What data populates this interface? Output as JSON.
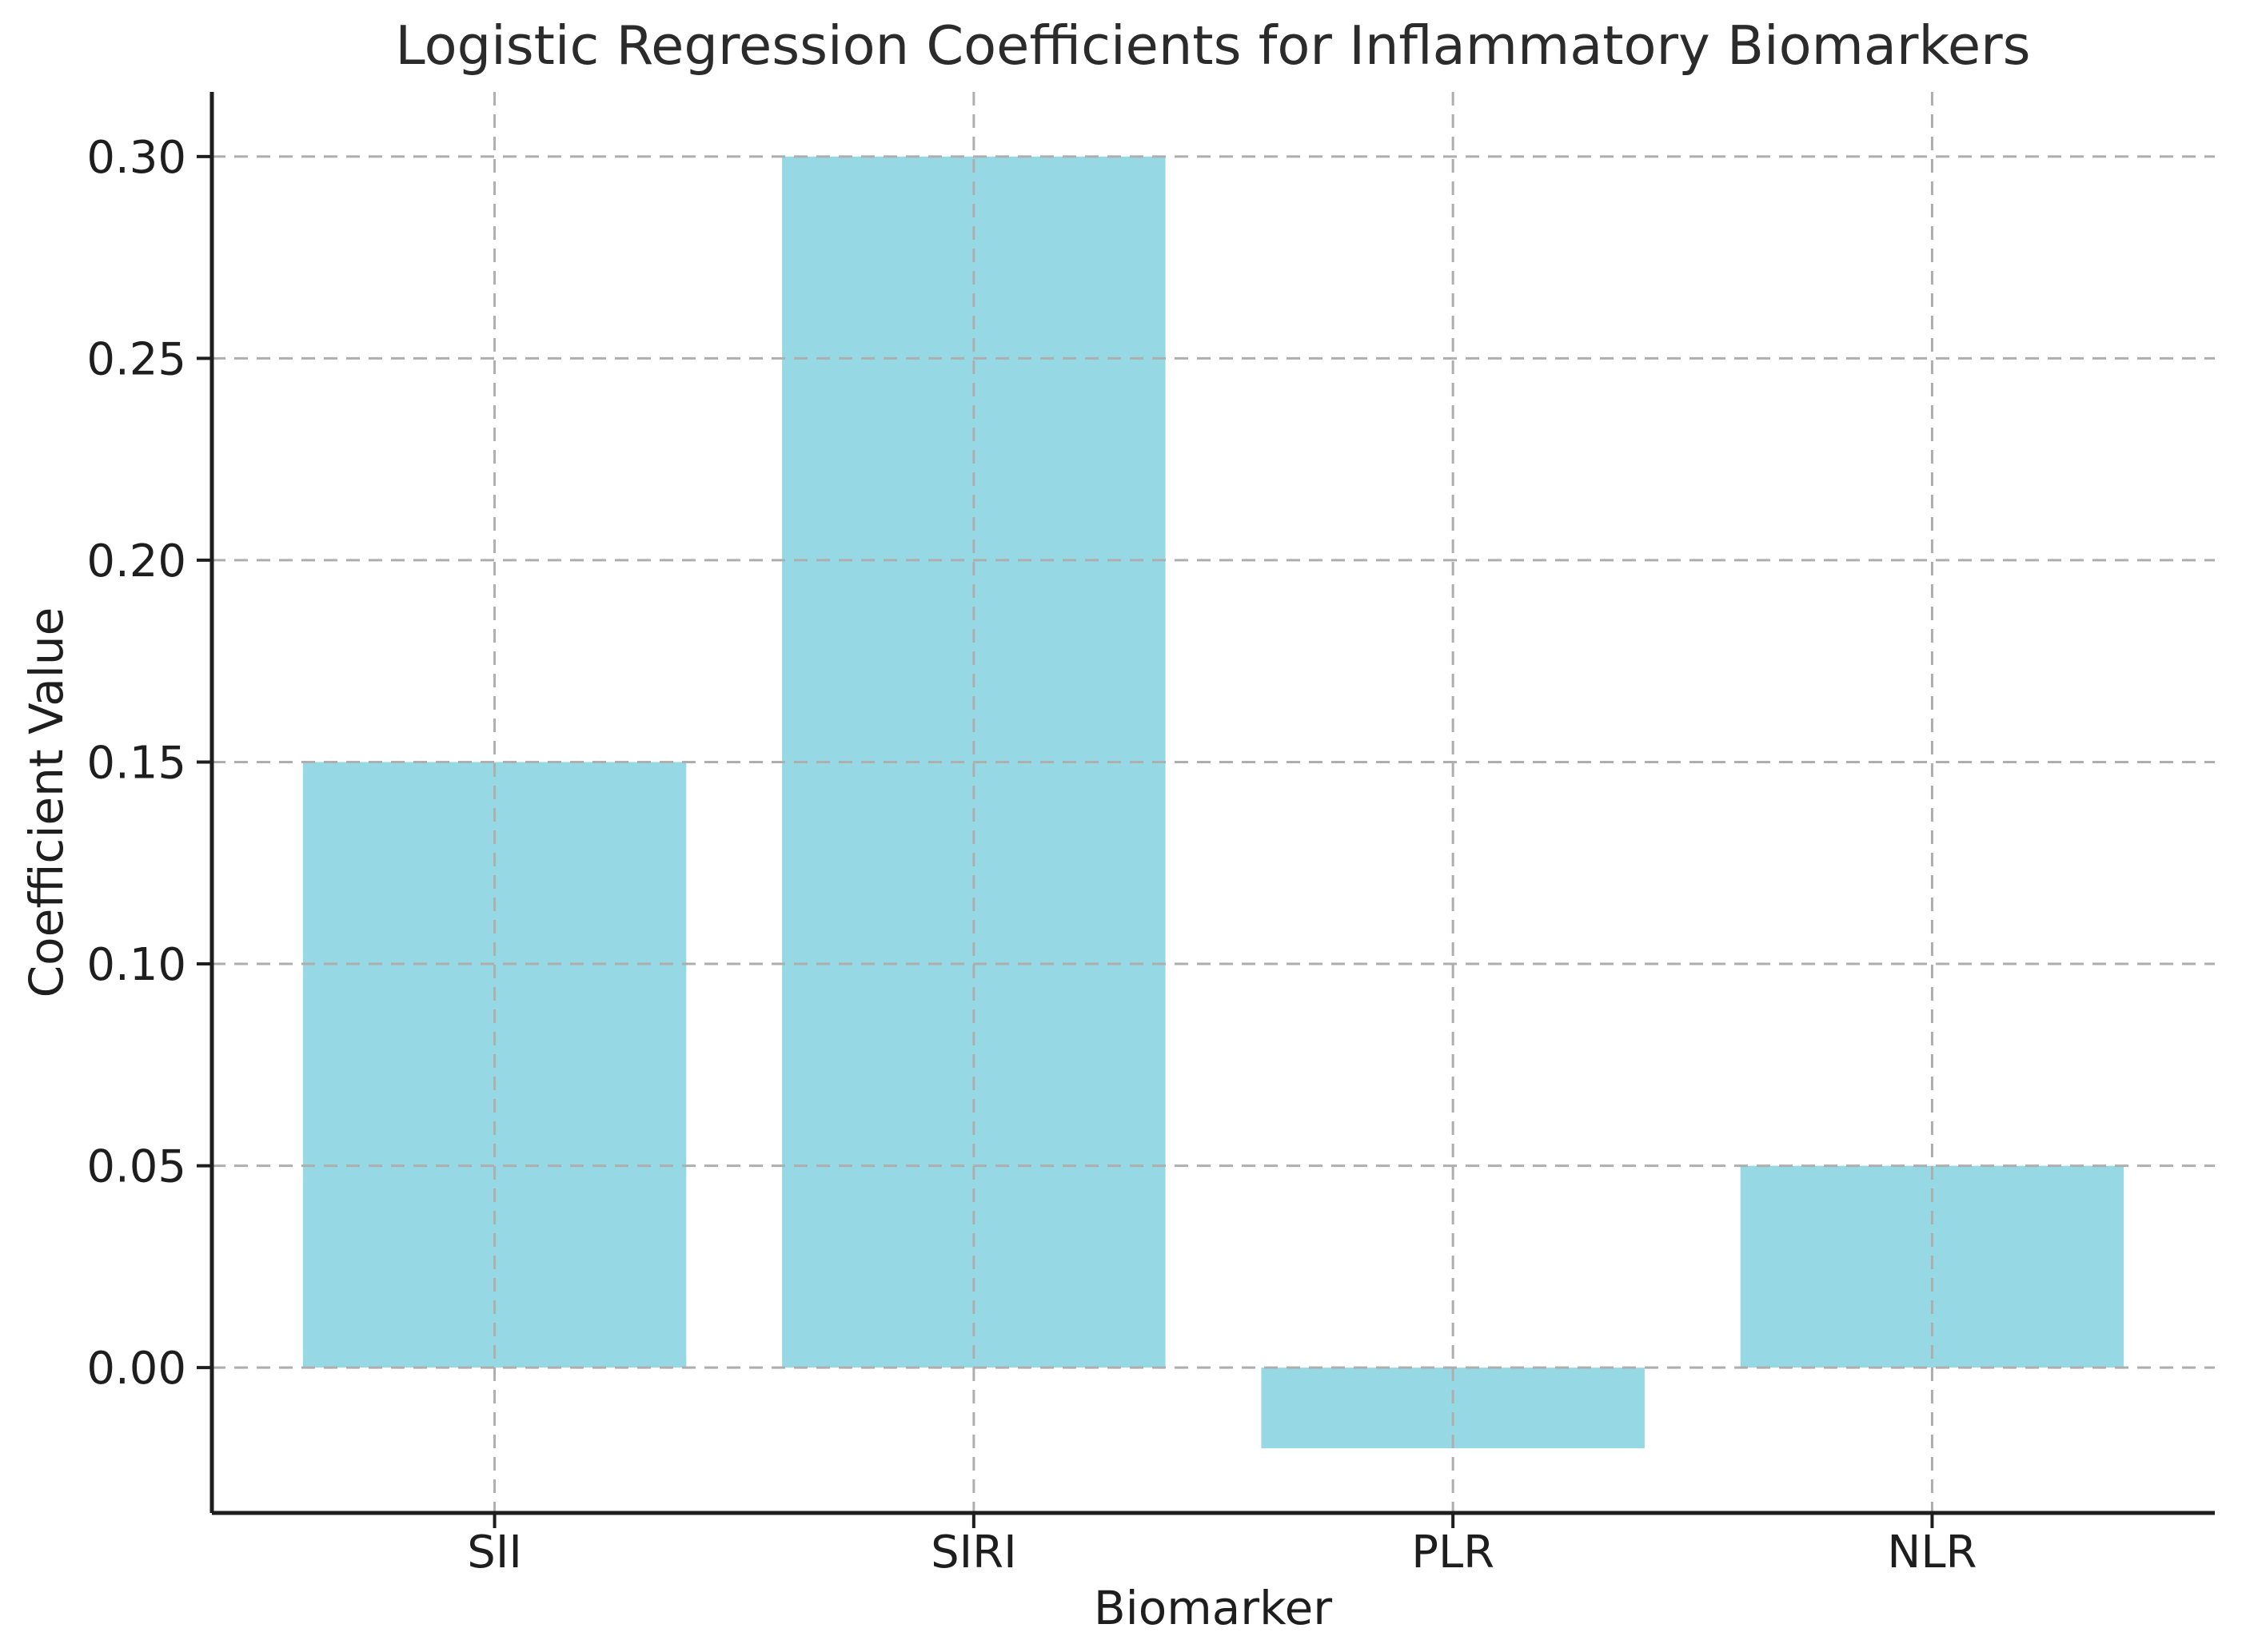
{
  "figure": {
    "background_color": "#ffffff"
  },
  "chart_data": {
    "type": "bar",
    "title": "Logistic Regression Coefficients for Inflammatory Biomarkers",
    "xlabel": "Biomarker",
    "ylabel": "Coefficient Value",
    "categories": [
      "SII",
      "SIRI",
      "PLR",
      "NLR"
    ],
    "values": [
      0.15,
      0.3,
      -0.02,
      0.05
    ],
    "ylim": [
      -0.036,
      0.316
    ],
    "yticks": [
      0.0,
      0.05,
      0.1,
      0.15,
      0.2,
      0.25,
      0.3
    ],
    "ytick_labels": [
      "0.00",
      "0.05",
      "0.10",
      "0.15",
      "0.20",
      "0.25",
      "0.30"
    ],
    "bar_color": "#97d8e5",
    "grid": true,
    "grid_style": "dashed",
    "grid_color": "#aeaeae",
    "axis_color": "#1e1e1e",
    "legend_position": "none",
    "bar_width_fraction": 0.8
  }
}
